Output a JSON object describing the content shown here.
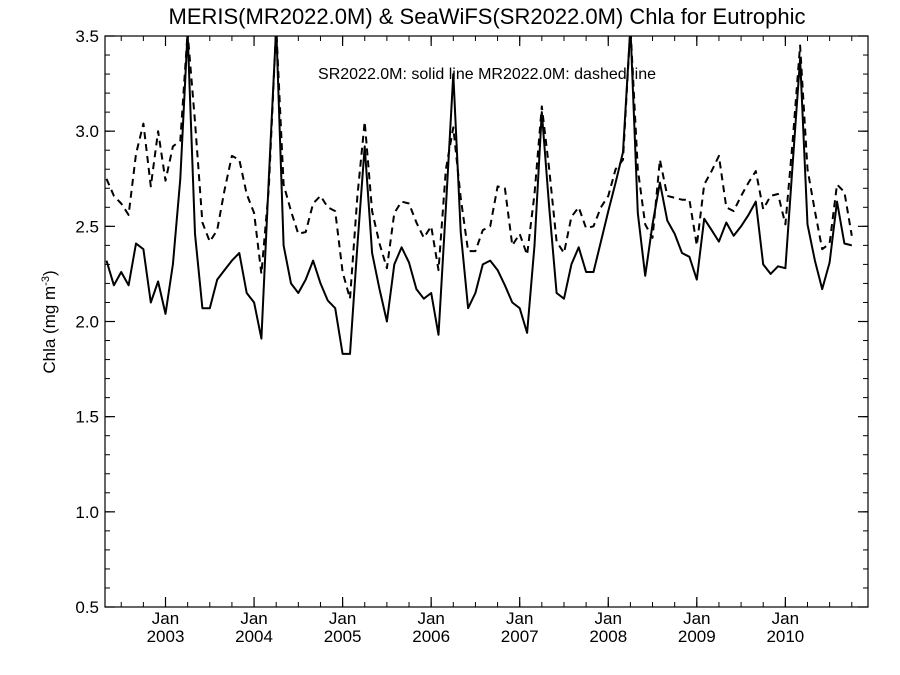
{
  "chart_data": {
    "type": "line",
    "title": "MERIS(MR2022.0M) & SeaWiFS(SR2022.0M)  Chla for Eutrophic",
    "ylabel": "Chla (mg m",
    "ylabel_superscript": "-3",
    "ylabel_close": ")",
    "ylim": [
      0.5,
      3.5
    ],
    "xlim": [
      "2002-05",
      "2010-12"
    ],
    "y_ticks": [
      "0.5",
      "1.0",
      "1.5",
      "2.0",
      "2.5",
      "3.0",
      "3.5"
    ],
    "x_tick_months": [
      "Jan",
      "Jan",
      "Jan",
      "Jan",
      "Jan",
      "Jan",
      "Jan",
      "Jan"
    ],
    "x_tick_years": [
      "2003",
      "2004",
      "2005",
      "2006",
      "2007",
      "2008",
      "2009",
      "2010"
    ],
    "annotation": "SR2022.0M: solid line   MR2022.0M: dashed line",
    "grid": false,
    "line_color": "#000000",
    "series": [
      {
        "name": "SR2022.0M",
        "style": "solid",
        "start": "2002-05",
        "values": [
          2.32,
          2.19,
          2.26,
          2.19,
          2.41,
          2.38,
          2.1,
          2.21,
          2.04,
          2.3,
          2.75,
          3.52,
          2.46,
          2.07,
          2.07,
          2.22,
          2.27,
          2.32,
          2.36,
          2.15,
          2.1,
          1.91,
          2.75,
          3.55,
          2.4,
          2.2,
          2.15,
          2.22,
          2.32,
          2.2,
          2.11,
          2.07,
          1.83,
          1.83,
          2.4,
          2.92,
          2.36,
          2.17,
          2.0,
          2.3,
          2.39,
          2.31,
          2.17,
          2.12,
          2.15,
          1.93,
          2.6,
          3.3,
          2.47,
          2.07,
          2.15,
          2.3,
          2.32,
          2.27,
          2.19,
          2.1,
          2.07,
          1.94,
          2.4,
          3.1,
          2.6,
          2.15,
          2.12,
          2.3,
          2.39,
          2.26,
          2.26,
          2.42,
          2.58,
          2.73,
          2.89,
          3.55,
          2.57,
          2.24,
          2.51,
          2.73,
          2.53,
          2.46,
          2.36,
          2.34,
          2.22,
          2.54,
          2.48,
          2.42,
          2.52,
          2.45,
          2.5,
          2.56,
          2.63,
          2.3,
          2.25,
          2.29,
          2.28,
          2.83,
          3.38,
          2.51,
          2.32,
          2.17,
          2.31,
          2.63,
          2.41,
          2.4
        ]
      },
      {
        "name": "MR2022.0M",
        "style": "dashed",
        "start": "2002-05",
        "values": [
          2.75,
          2.66,
          2.62,
          2.56,
          2.88,
          3.04,
          2.71,
          3.0,
          2.74,
          2.92,
          2.95,
          3.52,
          3.05,
          2.52,
          2.42,
          2.48,
          2.69,
          2.87,
          2.85,
          2.67,
          2.57,
          2.25,
          2.7,
          3.55,
          2.72,
          2.58,
          2.46,
          2.47,
          2.62,
          2.66,
          2.6,
          2.58,
          2.26,
          2.12,
          2.66,
          3.05,
          2.58,
          2.41,
          2.28,
          2.57,
          2.63,
          2.62,
          2.52,
          2.44,
          2.5,
          2.27,
          2.8,
          3.02,
          2.65,
          2.37,
          2.37,
          2.48,
          2.5,
          2.71,
          2.7,
          2.4,
          2.46,
          2.35,
          2.67,
          3.13,
          2.8,
          2.42,
          2.36,
          2.55,
          2.6,
          2.49,
          2.5,
          2.6,
          2.66,
          2.8,
          2.85,
          3.55,
          2.8,
          2.51,
          2.44,
          2.85,
          2.66,
          2.65,
          2.64,
          2.64,
          2.4,
          2.72,
          2.79,
          2.87,
          2.6,
          2.58,
          2.66,
          2.73,
          2.79,
          2.59,
          2.66,
          2.67,
          2.51,
          2.95,
          3.45,
          2.8,
          2.58,
          2.38,
          2.41,
          2.72,
          2.68,
          2.45
        ]
      }
    ]
  }
}
